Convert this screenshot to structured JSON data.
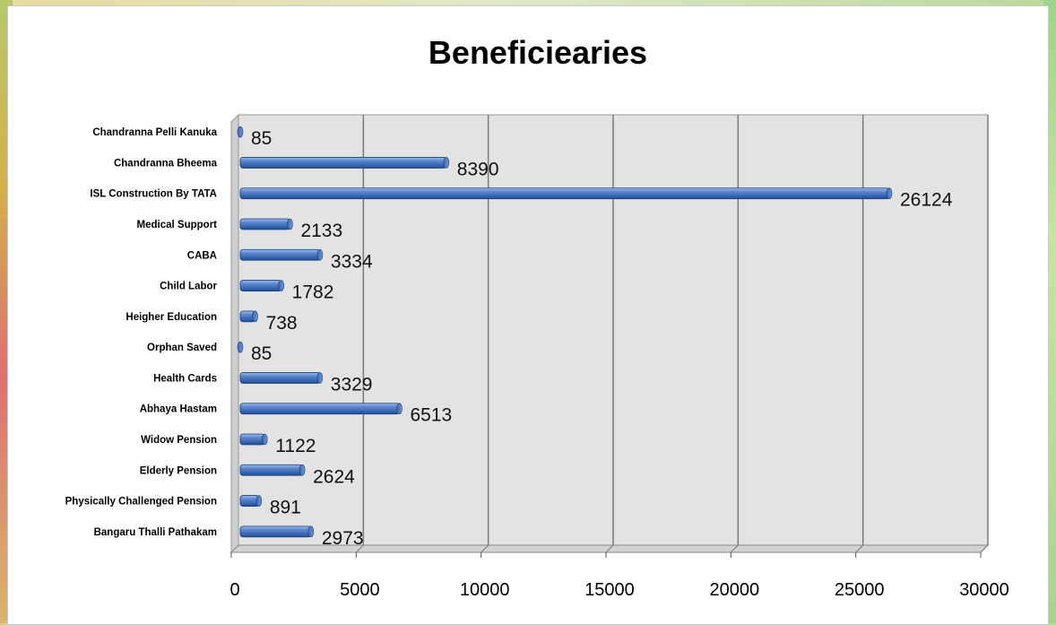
{
  "chart_data": {
    "type": "bar",
    "orientation": "horizontal",
    "title": "Beneficiearies",
    "xlabel": "",
    "ylabel": "",
    "categories": [
      "Chandranna Pelli Kanuka",
      "Chandranna Bheema",
      "ISL Construction By TATA",
      "Medical Support",
      "CABA",
      "Child Labor",
      "Heigher Education",
      "Orphan Saved",
      "Health Cards",
      "Abhaya Hastam",
      "Widow Pension",
      "Elderly Pension",
      "Physically Challenged Pension",
      "Bangaru Thalli Pathakam"
    ],
    "values": [
      85,
      8390,
      26124,
      2133,
      3334,
      1782,
      738,
      85,
      3329,
      6513,
      1122,
      2624,
      891,
      2973
    ],
    "value_labels": [
      "85",
      "8390",
      "26124",
      "2133",
      "3334",
      "1782",
      "738",
      "85",
      "3329",
      "6513",
      "1122",
      "2624",
      "891",
      "2973"
    ],
    "xlim": [
      0,
      30000
    ],
    "x_ticks": [
      "0",
      "5000",
      "10000",
      "15000",
      "20000",
      "25000",
      "30000"
    ],
    "grid": true,
    "bar_color": "#4472c4"
  }
}
